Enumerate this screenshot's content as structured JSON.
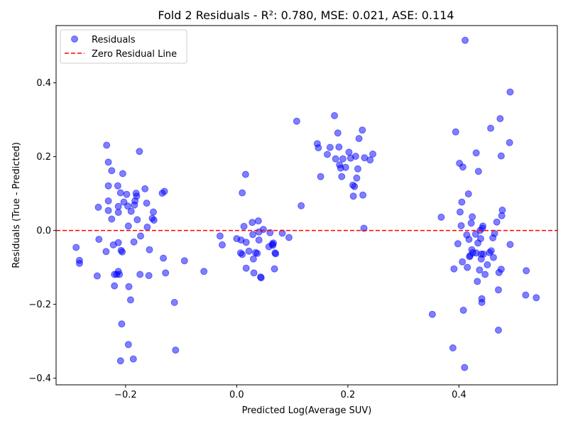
{
  "chart_data": {
    "type": "scatter",
    "title": "Fold 2 Residuals - R²: 0.780, MSE: 0.021, ASE: 0.114",
    "xlabel": "Predicted Log(Average SUV)",
    "ylabel": "Residuals (True - Predicted)",
    "xlim": [
      -0.325,
      0.577
    ],
    "ylim": [
      -0.418,
      0.555
    ],
    "xticks": [
      -0.2,
      0.0,
      0.2,
      0.4
    ],
    "xtick_labels": [
      "−0.2",
      "0.0",
      "0.2",
      "0.4"
    ],
    "yticks": [
      -0.4,
      -0.2,
      0.0,
      0.2,
      0.4
    ],
    "ytick_labels": [
      "−0.4",
      "−0.2",
      "0.0",
      "0.2",
      "0.4"
    ],
    "grid": false,
    "legend_position": "top-left",
    "reference_line": {
      "y": 0.0,
      "name": "Zero Residual Line",
      "color": "#ff0000",
      "style": "dashed"
    },
    "series": [
      {
        "name": "Residuals",
        "color": "#0000ff",
        "alpha": 0.5,
        "points": [
          [
            -0.289,
            -0.046
          ],
          [
            -0.283,
            -0.081
          ],
          [
            -0.283,
            -0.089
          ],
          [
            -0.251,
            -0.123
          ],
          [
            -0.249,
            0.063
          ],
          [
            -0.248,
            -0.024
          ],
          [
            -0.234,
            0.231
          ],
          [
            -0.235,
            -0.057
          ],
          [
            -0.231,
            0.185
          ],
          [
            -0.231,
            0.121
          ],
          [
            -0.231,
            0.08
          ],
          [
            -0.231,
            0.054
          ],
          [
            -0.225,
            0.162
          ],
          [
            -0.225,
            0.031
          ],
          [
            -0.222,
            -0.039
          ],
          [
            -0.22,
            -0.119
          ],
          [
            -0.22,
            -0.15
          ],
          [
            -0.216,
            -0.119
          ],
          [
            -0.214,
            0.121
          ],
          [
            -0.213,
            0.065
          ],
          [
            -0.213,
            0.049
          ],
          [
            -0.213,
            -0.033
          ],
          [
            -0.213,
            -0.111
          ],
          [
            -0.211,
            -0.119
          ],
          [
            -0.209,
            -0.353
          ],
          [
            -0.209,
            0.102
          ],
          [
            -0.208,
            -0.054
          ],
          [
            -0.207,
            -0.253
          ],
          [
            -0.206,
            -0.058
          ],
          [
            -0.205,
            0.154
          ],
          [
            -0.203,
            0.077
          ],
          [
            -0.198,
            0.098
          ],
          [
            -0.196,
            0.066
          ],
          [
            -0.195,
            -0.309
          ],
          [
            -0.195,
            0.012
          ],
          [
            -0.194,
            -0.152
          ],
          [
            -0.191,
            -0.188
          ],
          [
            -0.19,
            0.052
          ],
          [
            -0.186,
            -0.348
          ],
          [
            -0.185,
            -0.031
          ],
          [
            -0.184,
            0.069
          ],
          [
            -0.183,
            0.08
          ],
          [
            -0.181,
            0.101
          ],
          [
            -0.18,
            0.093
          ],
          [
            -0.179,
            0.029
          ],
          [
            -0.175,
            0.214
          ],
          [
            -0.174,
            -0.119
          ],
          [
            -0.173,
            -0.015
          ],
          [
            -0.165,
            0.113
          ],
          [
            -0.162,
            0.074
          ],
          [
            -0.161,
            0.009
          ],
          [
            -0.158,
            -0.122
          ],
          [
            -0.157,
            -0.052
          ],
          [
            -0.152,
            0.033
          ],
          [
            -0.15,
            0.05
          ],
          [
            -0.149,
            0.028
          ],
          [
            -0.134,
            0.101
          ],
          [
            -0.132,
            -0.075
          ],
          [
            -0.13,
            0.106
          ],
          [
            -0.128,
            -0.115
          ],
          [
            -0.112,
            -0.195
          ],
          [
            -0.11,
            -0.324
          ],
          [
            -0.094,
            -0.082
          ],
          [
            -0.059,
            -0.111
          ],
          [
            -0.03,
            -0.015
          ],
          [
            -0.026,
            -0.039
          ],
          [
            0.0,
            -0.022
          ],
          [
            0.007,
            -0.061
          ],
          [
            0.008,
            -0.026
          ],
          [
            0.01,
            -0.065
          ],
          [
            0.01,
            0.102
          ],
          [
            0.013,
            0.011
          ],
          [
            0.016,
            0.152
          ],
          [
            0.017,
            -0.032
          ],
          [
            0.017,
            -0.102
          ],
          [
            0.022,
            -0.056
          ],
          [
            0.028,
            0.022
          ],
          [
            0.029,
            -0.011
          ],
          [
            0.03,
            -0.077
          ],
          [
            0.031,
            -0.115
          ],
          [
            0.034,
            -0.06
          ],
          [
            0.037,
            -0.062
          ],
          [
            0.039,
            0.026
          ],
          [
            0.04,
            -0.026
          ],
          [
            0.04,
            -0.004
          ],
          [
            0.043,
            -0.126
          ],
          [
            0.044,
            -0.128
          ],
          [
            0.048,
            0.003
          ],
          [
            0.058,
            -0.044
          ],
          [
            0.06,
            -0.006
          ],
          [
            0.064,
            -0.037
          ],
          [
            0.065,
            -0.04
          ],
          [
            0.066,
            -0.034
          ],
          [
            0.068,
            -0.104
          ],
          [
            0.069,
            -0.061
          ],
          [
            0.07,
            -0.063
          ],
          [
            0.082,
            -0.007
          ],
          [
            0.094,
            -0.019
          ],
          [
            0.108,
            0.296
          ],
          [
            0.116,
            0.067
          ],
          [
            0.145,
            0.235
          ],
          [
            0.147,
            0.224
          ],
          [
            0.151,
            0.146
          ],
          [
            0.163,
            0.206
          ],
          [
            0.168,
            0.225
          ],
          [
            0.176,
            0.311
          ],
          [
            0.178,
            0.194
          ],
          [
            0.182,
            0.264
          ],
          [
            0.184,
            0.226
          ],
          [
            0.185,
            0.178
          ],
          [
            0.187,
            0.169
          ],
          [
            0.189,
            0.146
          ],
          [
            0.191,
            0.194
          ],
          [
            0.196,
            0.171
          ],
          [
            0.202,
            0.212
          ],
          [
            0.205,
            0.196
          ],
          [
            0.209,
            0.123
          ],
          [
            0.21,
            0.093
          ],
          [
            0.212,
            0.119
          ],
          [
            0.214,
            0.201
          ],
          [
            0.216,
            0.142
          ],
          [
            0.218,
            0.167
          ],
          [
            0.22,
            0.249
          ],
          [
            0.226,
            0.272
          ],
          [
            0.227,
            0.096
          ],
          [
            0.229,
            0.006
          ],
          [
            0.23,
            0.197
          ],
          [
            0.24,
            0.191
          ],
          [
            0.245,
            0.207
          ],
          [
            0.352,
            -0.227
          ],
          [
            0.368,
            0.036
          ],
          [
            0.389,
            -0.318
          ],
          [
            0.391,
            -0.104
          ],
          [
            0.394,
            0.267
          ],
          [
            0.398,
            -0.036
          ],
          [
            0.401,
            0.182
          ],
          [
            0.402,
            0.05
          ],
          [
            0.404,
            0.013
          ],
          [
            0.405,
            0.077
          ],
          [
            0.406,
            -0.085
          ],
          [
            0.407,
            0.172
          ],
          [
            0.408,
            -0.216
          ],
          [
            0.41,
            -0.371
          ],
          [
            0.411,
            0.515
          ],
          [
            0.414,
            -0.012
          ],
          [
            0.415,
            -0.1
          ],
          [
            0.417,
            0.099
          ],
          [
            0.418,
            -0.024
          ],
          [
            0.419,
            -0.071
          ],
          [
            0.42,
            -0.068
          ],
          [
            0.422,
            0.02
          ],
          [
            0.423,
            -0.052
          ],
          [
            0.424,
            0.037
          ],
          [
            0.425,
            -0.06
          ],
          [
            0.43,
            -0.01
          ],
          [
            0.431,
            -0.061
          ],
          [
            0.431,
            0.21
          ],
          [
            0.433,
            -0.138
          ],
          [
            0.434,
            -0.034
          ],
          [
            0.435,
            0.16
          ],
          [
            0.437,
            -0.107
          ],
          [
            0.438,
            0.0
          ],
          [
            0.439,
            -0.022
          ],
          [
            0.44,
            -0.064
          ],
          [
            0.44,
            -0.077
          ],
          [
            0.441,
            -0.185
          ],
          [
            0.441,
            -0.195
          ],
          [
            0.442,
            0.006
          ],
          [
            0.443,
            0.012
          ],
          [
            0.444,
            -0.064
          ],
          [
            0.447,
            -0.119
          ],
          [
            0.451,
            -0.093
          ],
          [
            0.455,
            -0.06
          ],
          [
            0.457,
            0.277
          ],
          [
            0.458,
            -0.055
          ],
          [
            0.461,
            -0.02
          ],
          [
            0.462,
            -0.073
          ],
          [
            0.464,
            -0.008
          ],
          [
            0.468,
            0.023
          ],
          [
            0.471,
            -0.27
          ],
          [
            0.471,
            -0.161
          ],
          [
            0.472,
            -0.114
          ],
          [
            0.474,
            0.303
          ],
          [
            0.476,
            0.202
          ],
          [
            0.476,
            -0.105
          ],
          [
            0.477,
            0.04
          ],
          [
            0.478,
            0.055
          ],
          [
            0.491,
            0.238
          ],
          [
            0.492,
            0.375
          ],
          [
            0.492,
            -0.038
          ],
          [
            0.52,
            -0.175
          ],
          [
            0.521,
            -0.109
          ],
          [
            0.539,
            -0.182
          ]
        ]
      }
    ]
  }
}
